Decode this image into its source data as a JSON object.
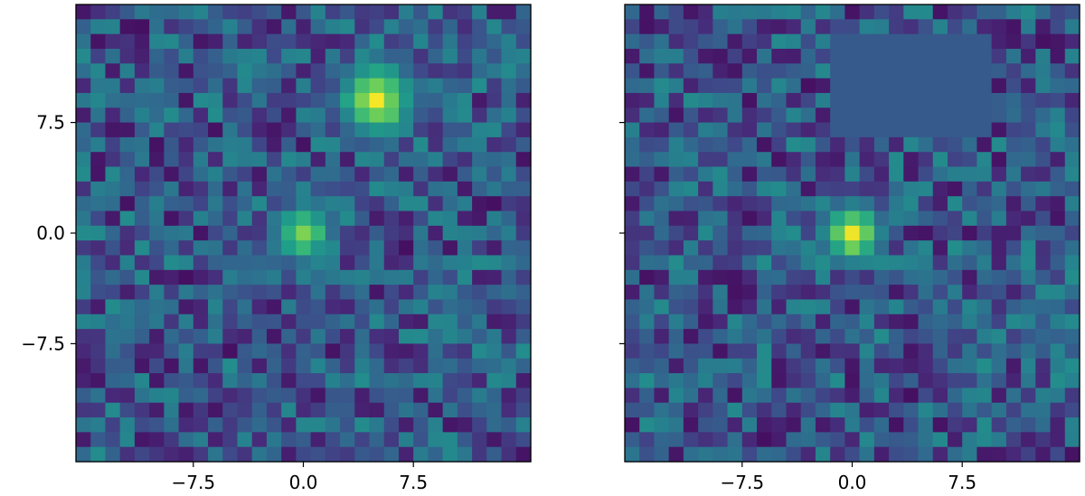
{
  "chart_data": [
    {
      "type": "heatmap",
      "panel": "left",
      "colormap": "viridis",
      "grid": false,
      "extent": [
        -15.5,
        15.5,
        -15.5,
        15.5
      ],
      "xlim": [
        -15.5,
        15.5
      ],
      "ylim": [
        -15.5,
        15.5
      ],
      "xticks": [
        -7.5,
        0.0,
        7.5
      ],
      "xtick_labels": [
        "−7.5",
        "0.0",
        "7.5"
      ],
      "yticks": [
        -7.5,
        0.0,
        7.5
      ],
      "ytick_labels": [
        "−7.5",
        "0.0",
        "7.5"
      ],
      "background_range": [
        0.05,
        0.55
      ],
      "sources": [
        {
          "x": 5.0,
          "y": 9.0,
          "peak": 0.97,
          "sigma": 2.0
        },
        {
          "x": 0.0,
          "y": 0.0,
          "peak": 0.85,
          "sigma": 1.6
        }
      ]
    },
    {
      "type": "heatmap",
      "panel": "right",
      "colormap": "viridis",
      "grid": false,
      "extent": [
        -15.5,
        15.5,
        -15.5,
        15.5
      ],
      "xlim": [
        -15.5,
        15.5
      ],
      "ylim": [
        -15.5,
        15.5
      ],
      "xticks": [
        -7.5,
        0.0,
        7.5
      ],
      "xtick_labels": [
        "−7.5",
        "0.0",
        "7.5"
      ],
      "yticks": [
        -7.5,
        0.0,
        7.5
      ],
      "ytick_labels": [],
      "background_range": [
        0.05,
        0.55
      ],
      "masked_region": {
        "x": [
          -1.0,
          9.0
        ],
        "y": [
          7.0,
          13.0
        ],
        "value": 0.32
      },
      "sources": [
        {
          "x": 0.0,
          "y": 0.0,
          "peak": 0.97,
          "sigma": 1.6
        }
      ]
    }
  ]
}
